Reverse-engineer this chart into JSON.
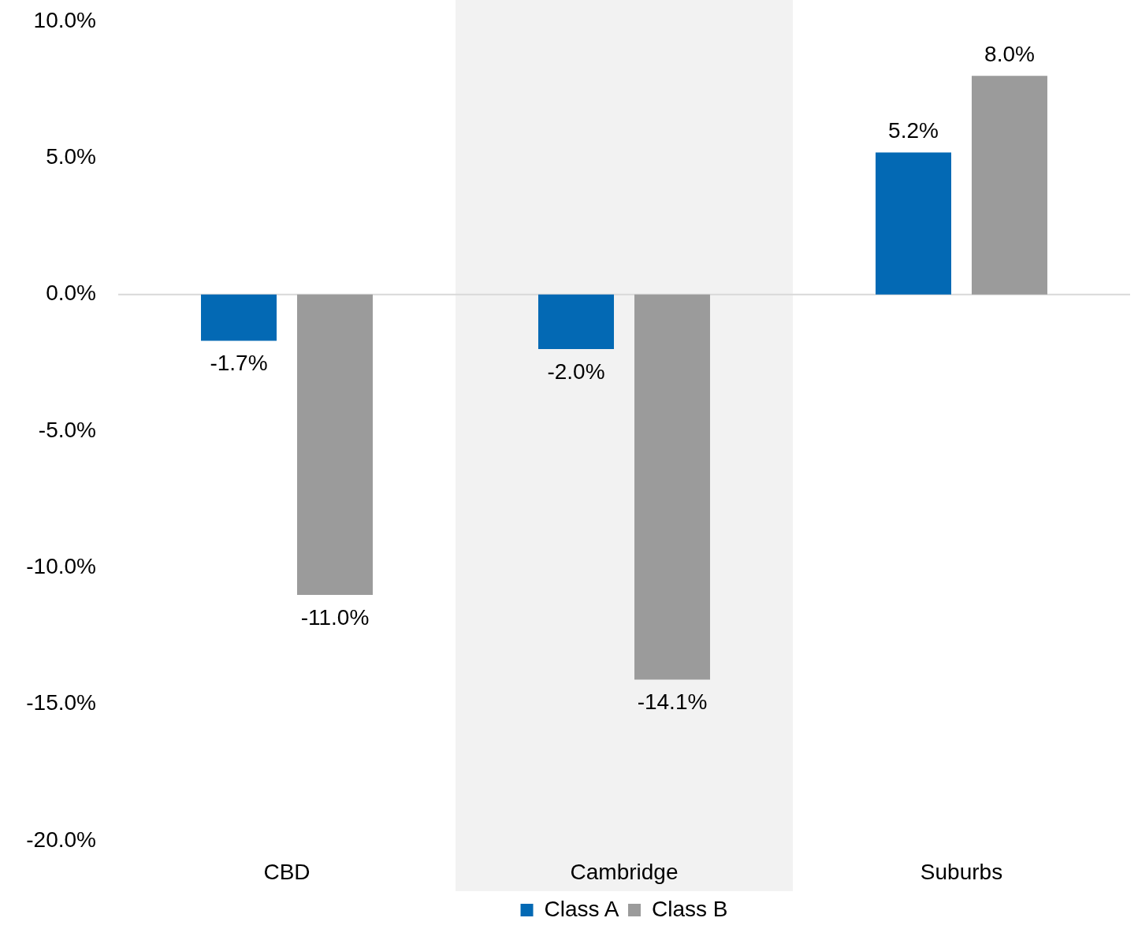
{
  "chart_data": {
    "type": "bar",
    "categories": [
      "CBD",
      "Cambridge",
      "Suburbs"
    ],
    "series": [
      {
        "name": "Class A",
        "color": "#0369b4",
        "values": [
          -1.7,
          -2.0,
          5.2
        ],
        "value_labels": [
          "-1.7%",
          "-2.0%",
          "5.2%"
        ]
      },
      {
        "name": "Class B",
        "color": "#9b9b9b",
        "values": [
          -11.0,
          -14.1,
          8.0
        ],
        "value_labels": [
          "-11.0%",
          "-14.1%",
          "8.0%"
        ]
      }
    ],
    "ylim": [
      -20,
      10
    ],
    "yticks": [
      {
        "value": -20,
        "label": "-20.0%"
      },
      {
        "value": -15,
        "label": "-15.0%"
      },
      {
        "value": -10,
        "label": "-10.0%"
      },
      {
        "value": -5,
        "label": "-5.0%"
      },
      {
        "value": 0,
        "label": "0.0%"
      },
      {
        "value": 5,
        "label": "5.0%"
      },
      {
        "value": 10,
        "label": "10.0%"
      }
    ],
    "grid": false,
    "legend": "bottom",
    "ref_lines": [
      {
        "axis": "y",
        "value": 0,
        "color": "#d9d9d9"
      }
    ],
    "bands": [
      {
        "axis": "x",
        "from": "Cambridge",
        "to": "Cambridge",
        "color": "#f2f2f2"
      }
    ]
  }
}
